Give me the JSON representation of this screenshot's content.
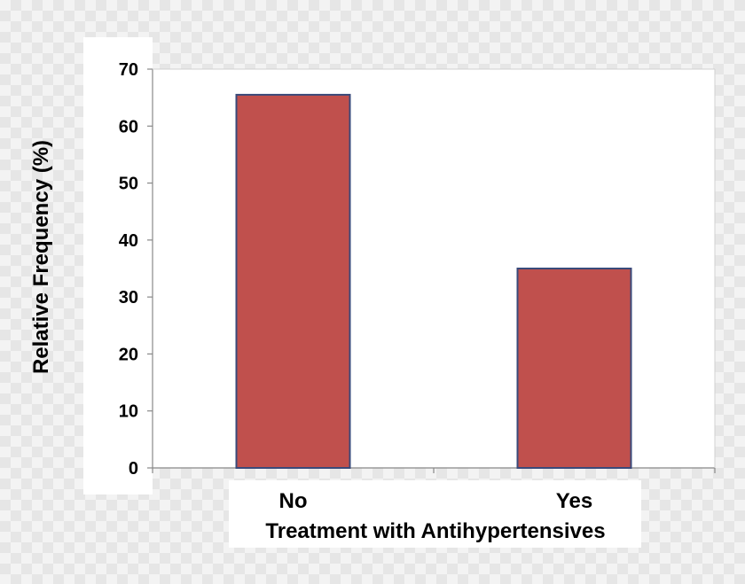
{
  "chart_data": {
    "type": "bar",
    "title": "",
    "categories": [
      "No",
      "Yes"
    ],
    "values": [
      65.5,
      35
    ],
    "xlabel": "Treatment with Antihypertensives",
    "ylabel": "Relative Frequency (%)",
    "ylim": [
      0,
      70
    ],
    "yticks": [
      0,
      10,
      20,
      30,
      40,
      50,
      60,
      70
    ],
    "ytick_labels": [
      "0",
      "10",
      "20",
      "30",
      "40",
      "50",
      "60",
      "70"
    ],
    "grid": false,
    "legend": "none",
    "colors": {
      "bar_fill": "#c0504d",
      "bar_stroke": "#3a4a7a",
      "axis": "#888888",
      "plot_background": "#ffffff"
    }
  }
}
